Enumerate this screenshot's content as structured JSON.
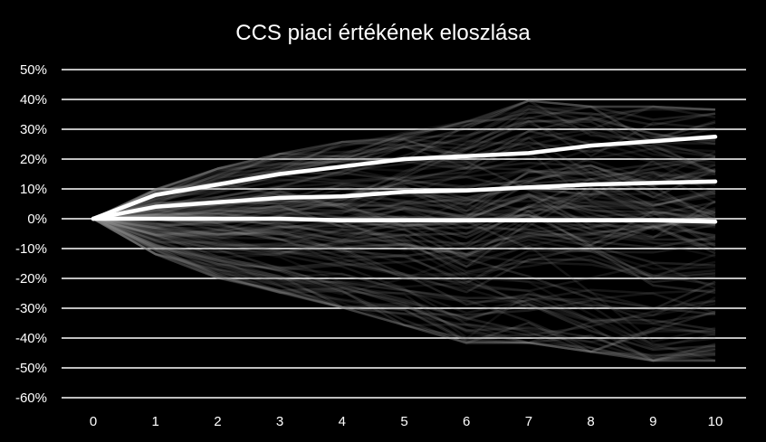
{
  "chart_data": {
    "type": "line",
    "title": "CCS piaci értékének eloszlása",
    "xlabel": "",
    "ylabel": "",
    "x": [
      0,
      1,
      2,
      3,
      4,
      5,
      6,
      7,
      8,
      9,
      10
    ],
    "x_tick_labels": [
      "0",
      "1",
      "2",
      "3",
      "4",
      "5",
      "6",
      "7",
      "8",
      "9",
      "10"
    ],
    "y_tick_values": [
      -60,
      -50,
      -40,
      -30,
      -20,
      -10,
      0,
      10,
      20,
      30,
      40,
      50
    ],
    "y_tick_labels": [
      "-60%",
      "-50%",
      "-40%",
      "-30%",
      "-20%",
      "-10%",
      "0%",
      "10%",
      "20%",
      "30%",
      "40%",
      "50%"
    ],
    "ylim": [
      -60,
      50
    ],
    "grid": true,
    "legend": "none",
    "colors": {
      "background": "#000000",
      "text": "#ffffff",
      "grid": "#ffffff",
      "highlight_series": "#ffffff",
      "simulation_paths": "#9a9a9a"
    },
    "series": [
      {
        "values": [
          0,
          8,
          11.5,
          15,
          17.5,
          20,
          21,
          22,
          24.5,
          26,
          27.5
        ]
      },
      {
        "values": [
          0,
          4,
          5.5,
          7,
          7.5,
          9,
          9.5,
          10.5,
          11.5,
          12,
          12.5
        ]
      },
      {
        "values": [
          0,
          0,
          0,
          0,
          -0.5,
          -0.5,
          -0.5,
          -0.5,
          -0.5,
          -0.5,
          -1
        ]
      }
    ],
    "simulation_fan": {
      "path_count": 120,
      "upper_envelope": [
        0,
        10,
        17,
        22,
        26,
        30,
        33,
        40,
        38,
        38,
        37
      ],
      "lower_envelope": [
        0,
        -12,
        -20,
        -25,
        -30,
        -36,
        -42,
        -42,
        -45,
        -48,
        -48
      ]
    }
  }
}
